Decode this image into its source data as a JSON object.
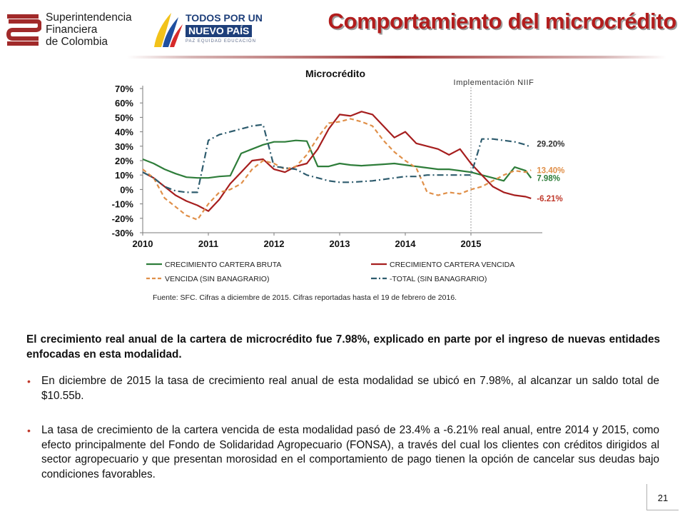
{
  "header": {
    "org_name_lines": [
      "Superintendencia",
      "Financiera",
      "de Colombia"
    ],
    "gov_logo_lines": [
      "TODOS POR UN",
      "NUEVO PAÍS",
      "PAZ  EQUIDAD  EDUCACIÓN"
    ],
    "title": "Comportamiento del microcrédito"
  },
  "colors": {
    "title": "#b21d1d",
    "bruta": "#2e7d3a",
    "vencida": "#a61e1e",
    "vencida_sb": "#e0904a",
    "total_sb": "#2e5c6e"
  },
  "chart_data": {
    "type": "line",
    "title": "Microcrédito",
    "ylabel": "",
    "xlabel": "",
    "ylim": [
      -30,
      70
    ],
    "yticks": [
      "70%",
      "60%",
      "50%",
      "40%",
      "30%",
      "20%",
      "10%",
      "0%",
      "-10%",
      "-20%",
      "-30%"
    ],
    "xticks": [
      "2010",
      "2011",
      "2012",
      "2013",
      "2014",
      "2015"
    ],
    "x": [
      "2010-01",
      "2010-03",
      "2010-05",
      "2010-07",
      "2010-09",
      "2010-11",
      "2011-01",
      "2011-03",
      "2011-05",
      "2011-07",
      "2011-09",
      "2011-11",
      "2012-01",
      "2012-03",
      "2012-05",
      "2012-07",
      "2012-09",
      "2012-11",
      "2013-01",
      "2013-03",
      "2013-05",
      "2013-07",
      "2013-09",
      "2013-11",
      "2014-01",
      "2014-03",
      "2014-05",
      "2014-07",
      "2014-09",
      "2014-11",
      "2015-01",
      "2015-03",
      "2015-05",
      "2015-07",
      "2015-09",
      "2015-11",
      "2015-12"
    ],
    "grid": false,
    "legend_position": "bottom",
    "annotation": "Implementación NIIF",
    "annotation_x": "2015-01",
    "series": [
      {
        "name": "CRECIMIENTO CARTERA BRUTA",
        "style": "solid",
        "values": [
          21,
          18,
          14,
          11,
          8.5,
          8,
          8,
          9,
          9.5,
          25,
          28,
          31,
          33,
          33,
          34,
          33.5,
          16,
          16,
          18,
          17,
          16.5,
          17,
          17.5,
          18,
          17,
          16,
          15,
          14,
          14,
          13,
          12,
          10,
          8,
          6,
          15.5,
          13,
          7.98
        ],
        "end_label": "7.98%"
      },
      {
        "name": "CRECIMIENTO CARTERA VENCIDA",
        "style": "solid",
        "values": [
          12,
          8,
          2,
          -4,
          -8,
          -11,
          -15,
          -7,
          4,
          12,
          20,
          21,
          14,
          12,
          16,
          18,
          28,
          42,
          52,
          51,
          54,
          52,
          44,
          36,
          40,
          32,
          30,
          28,
          24,
          28,
          18,
          10,
          2,
          -2,
          -4,
          -5,
          -6.21
        ],
        "end_label": "-6.21%"
      },
      {
        "name": "VENCIDA (SIN BANAGRARIO)",
        "style": "dashed",
        "values": [
          14,
          8,
          -6,
          -12,
          -18,
          -21,
          -10,
          -2,
          0,
          4,
          14,
          20,
          18,
          14,
          16,
          24,
          36,
          46,
          47,
          49,
          47,
          44,
          34,
          26,
          20,
          15,
          -2,
          -4,
          -2,
          -3,
          0,
          2,
          6,
          10,
          13,
          12,
          13.4
        ],
        "end_label": "13.40%"
      },
      {
        "name": "-TOTAL (SIN BANAGRARIO)",
        "style": "dashdot",
        "values": [
          12,
          8,
          2,
          -1,
          -2,
          -2,
          34,
          38,
          40,
          42,
          44,
          45,
          16,
          15,
          14,
          10,
          8,
          6,
          5,
          5,
          5.5,
          6,
          7,
          8,
          9,
          9,
          10,
          10,
          10,
          10,
          10,
          35,
          35,
          34,
          33,
          31,
          29.2
        ],
        "end_label": "29.20%"
      }
    ]
  },
  "source": "Fuente: SFC. Cifras a diciembre de 2015. Cifras reportadas hasta el 19 de febrero de 2016.",
  "lead_text": "El crecimiento real anual de la cartera de microcrédito fue 7.98%, explicado en parte por el ingreso de nuevas entidades enfocadas en esta modalidad.",
  "bullets": [
    "En diciembre de 2015 la tasa de crecimiento real anual de esta modalidad se ubicó en 7.98%, al alcanzar un saldo total de $10.55b.",
    "La tasa de crecimiento de la cartera vencida de esta modalidad pasó de 23.4% a -6.21% real anual, entre 2014 y 2015, como efecto principalmente del Fondo de Solidaridad Agropecuario (FONSA), a través del cual los clientes con créditos dirigidos al sector agropecuario y que presentan morosidad en el comportamiento de pago tienen la opción de cancelar sus deudas bajo condiciones favorables."
  ],
  "page_number": "21"
}
